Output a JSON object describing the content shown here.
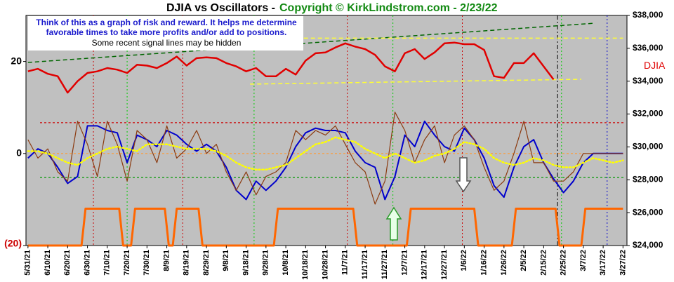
{
  "chart_data": {
    "type": "line",
    "title": "DJIA vs Oscillators -",
    "subtitle": "Copyright © KirkLindstrom.com - 2/23/22",
    "notes": [
      "Think of this as a graph of risk and reward.  It helps me determine",
      "favorable times to take more profits and/or add to positions.",
      "Some recent signal lines may be hidden"
    ],
    "x": [
      "5/31/21",
      "6/5/21",
      "6/10/21",
      "6/15/21",
      "6/20/21",
      "6/25/21",
      "6/30/21",
      "7/5/21",
      "7/10/21",
      "7/15/21",
      "7/20/21",
      "7/25/21",
      "7/30/21",
      "8/4/21",
      "8/9/21",
      "8/14/21",
      "8/19/21",
      "8/24/21",
      "8/29/21",
      "9/3/21",
      "9/8/21",
      "9/13/21",
      "9/18/21",
      "9/23/21",
      "9/28/21",
      "10/3/21",
      "10/8/21",
      "10/13/21",
      "10/18/21",
      "10/23/21",
      "10/28/21",
      "11/2/21",
      "11/7/21",
      "11/12/21",
      "11/17/21",
      "11/22/21",
      "11/27/21",
      "12/2/21",
      "12/7/21",
      "12/12/21",
      "12/17/21",
      "12/22/21",
      "12/27/21",
      "1/1/22",
      "1/6/22",
      "1/11/22",
      "1/16/22",
      "1/21/22",
      "1/26/22",
      "1/31/22",
      "2/5/22",
      "2/10/22",
      "2/15/22",
      "2/20/22",
      "2/25/22",
      "3/2/22",
      "3/7/22",
      "3/12/22",
      "3/17/22",
      "3/22/22",
      "3/27/22"
    ],
    "xlim": [
      "5/30/21",
      "3/29/22"
    ],
    "xticks": [
      "5/31/21",
      "6/10/21",
      "6/20/21",
      "6/30/21",
      "7/10/21",
      "7/20/21",
      "7/30/21",
      "8/9/21",
      "8/19/21",
      "8/29/21",
      "9/8/21",
      "9/18/21",
      "9/28/21",
      "10/8/21",
      "10/18/21",
      "10/28/21",
      "11/7/21",
      "11/17/21",
      "11/27/21",
      "12/7/21",
      "12/17/21",
      "12/27/21",
      "1/6/22",
      "1/16/22",
      "1/26/22",
      "2/5/22",
      "2/15/22",
      "2/25/22",
      "3/7/22",
      "3/17/22",
      "3/27/22"
    ],
    "ylim": [
      -20,
      30
    ],
    "yticks": [
      {
        "value": -20,
        "label": "(20)"
      },
      0,
      20
    ],
    "y2lim": [
      24000,
      38000
    ],
    "y2ticks": [
      {
        "value": 24000,
        "label": "$24,000"
      },
      {
        "value": 26000,
        "label": "$26,000"
      },
      {
        "value": 28000,
        "label": "$28,000"
      },
      {
        "value": 30000,
        "label": "$30,000"
      },
      {
        "value": 32000,
        "label": "$32,000"
      },
      {
        "value": 34000,
        "label": "$34,000"
      },
      {
        "value": 36000,
        "label": "$36,000"
      },
      {
        "value": 38000,
        "label": "$38,000"
      }
    ],
    "series": [
      {
        "name": "DJIA",
        "color": "#e00000",
        "axis": "y2",
        "values": [
          34600,
          34750,
          34450,
          34300,
          33300,
          34000,
          34500,
          34600,
          34800,
          34700,
          34500,
          35000,
          34950,
          34800,
          35100,
          35500,
          34950,
          35400,
          35450,
          35400,
          35100,
          34900,
          34600,
          34800,
          34300,
          34300,
          34750,
          34400,
          35250,
          35700,
          35750,
          36050,
          36300,
          36100,
          35950,
          35600,
          34900,
          34600,
          35700,
          35950,
          35350,
          35750,
          36300,
          36350,
          36250,
          36250,
          35900,
          34300,
          34200,
          35100,
          35100,
          35700,
          34900,
          34100,
          null,
          null,
          null,
          null,
          null,
          null,
          null
        ]
      },
      {
        "color": "#0000cc",
        "values": [
          -1,
          1,
          0,
          -3,
          -6.5,
          -5,
          6,
          6,
          5,
          4.5,
          -2,
          4,
          3,
          1.5,
          5,
          4,
          2,
          0.5,
          2,
          0.5,
          -3,
          -8,
          -10,
          -6,
          -8,
          -6,
          -3,
          1.5,
          4.5,
          5.5,
          5,
          5,
          4.5,
          0.5,
          -2,
          -3,
          -10,
          -5,
          4,
          1.5,
          7,
          4,
          1.5,
          0.5,
          5.5,
          3,
          -1,
          -7,
          -9.5,
          -3,
          1.5,
          3,
          -2,
          -5.5,
          -8.5,
          -6,
          -2,
          0,
          0,
          0,
          0
        ]
      },
      {
        "color": "#8b3a0f",
        "values": [
          3,
          -1,
          1,
          -4,
          -6,
          7,
          2,
          -5,
          7,
          2,
          -6,
          5,
          3,
          -2,
          6,
          -1,
          1,
          5,
          0,
          2,
          -4,
          -8,
          -4,
          -9,
          -5,
          -4,
          -2,
          5,
          3,
          5,
          4,
          6,
          2,
          -2,
          -4,
          -11,
          -6,
          9,
          5,
          -2,
          3,
          6,
          -2,
          4,
          6,
          3,
          -3,
          -8,
          -6,
          0,
          7,
          -2,
          -2,
          -6,
          -6,
          -4,
          0,
          0,
          0,
          0,
          0
        ]
      },
      {
        "color": "#ffff00",
        "values": [
          0.5,
          0.5,
          0,
          -1,
          -2,
          -2.5,
          -1,
          0,
          1,
          1.5,
          1,
          0.5,
          2,
          2,
          2,
          1.5,
          1,
          1,
          1,
          0.5,
          -0.5,
          -2,
          -3,
          -3.5,
          -3.5,
          -3,
          -2.5,
          -1,
          0.5,
          2,
          2.5,
          3.5,
          3,
          2.5,
          1,
          0,
          -1,
          0,
          -1,
          -2,
          -1.5,
          -0.5,
          0,
          1,
          2.5,
          2,
          1,
          -1,
          -2,
          -2.5,
          -2,
          -1,
          -1.5,
          -2.5,
          -3,
          -3,
          -2,
          -1,
          -1.5,
          -2,
          -1.5
        ]
      },
      {
        "color": "#ff6600",
        "x": [
          "5/31/21",
          "6/27/21",
          "6/29/21",
          "7/16/21",
          "7/18/21",
          "7/22/21",
          "7/24/21",
          "8/8/21",
          "8/10/21",
          "8/12/21",
          "8/14/21",
          "8/25/21",
          "8/27/21",
          "10/2/21",
          "10/4/21",
          "11/11/21",
          "11/13/21",
          "12/8/21",
          "12/10/21",
          "1/11/22",
          "1/13/22",
          "1/30/22",
          "2/1/22",
          "2/21/22",
          "2/23/22",
          "3/6/22",
          "3/8/22",
          "3/27/22"
        ],
        "values": [
          -20,
          -20,
          -12,
          -12,
          -20,
          -20,
          -12,
          -12,
          -20,
          -20,
          -12,
          -12,
          -20,
          -20,
          -12,
          -12,
          -20,
          -20,
          -12,
          -12,
          -20,
          -20,
          -12,
          -12,
          -20,
          -20,
          -12,
          -12
        ]
      }
    ],
    "hlines": [
      {
        "value": 6.7,
        "color": "#cc0000"
      },
      {
        "value": 0,
        "color": "#ff9933"
      },
      {
        "value": -5.2,
        "color": "#009900"
      }
    ],
    "trendlines": [
      {
        "color": "#006600",
        "x": [
          "5/31/21",
          "3/13/22"
        ],
        "values": [
          35140,
          37530
        ]
      },
      {
        "color": "#ffff33",
        "x": [
          "10/10/21",
          "3/27/22"
        ],
        "values": [
          36620,
          36620
        ]
      },
      {
        "color": "#ffff33",
        "x": [
          "9/20/21",
          "3/6/22"
        ],
        "values": [
          33820,
          34115
        ]
      }
    ],
    "vlines": [
      {
        "x": "7/3/21",
        "color": "#cc0000",
        "style": "dotted"
      },
      {
        "x": "8/17/21",
        "color": "#cc0000",
        "style": "dotted"
      },
      {
        "x": "11/8/21",
        "color": "#cc0000",
        "style": "dotted"
      },
      {
        "x": "1/5/22",
        "color": "#cc0000",
        "style": "dotted"
      },
      {
        "x": "7/20/21",
        "color": "#00cc00",
        "style": "dotted"
      },
      {
        "x": "9/22/21",
        "color": "#00cc00",
        "style": "dotted"
      },
      {
        "x": "12/1/21",
        "color": "#00cc00",
        "style": "dotted"
      },
      {
        "x": "2/24/22",
        "color": "#00cc00",
        "style": "dotted"
      },
      {
        "x": "2/22/22",
        "color": "#000000",
        "style": "dashdot"
      },
      {
        "x": "3/19/22",
        "color": "#0000cc",
        "style": "dotted"
      }
    ]
  }
}
